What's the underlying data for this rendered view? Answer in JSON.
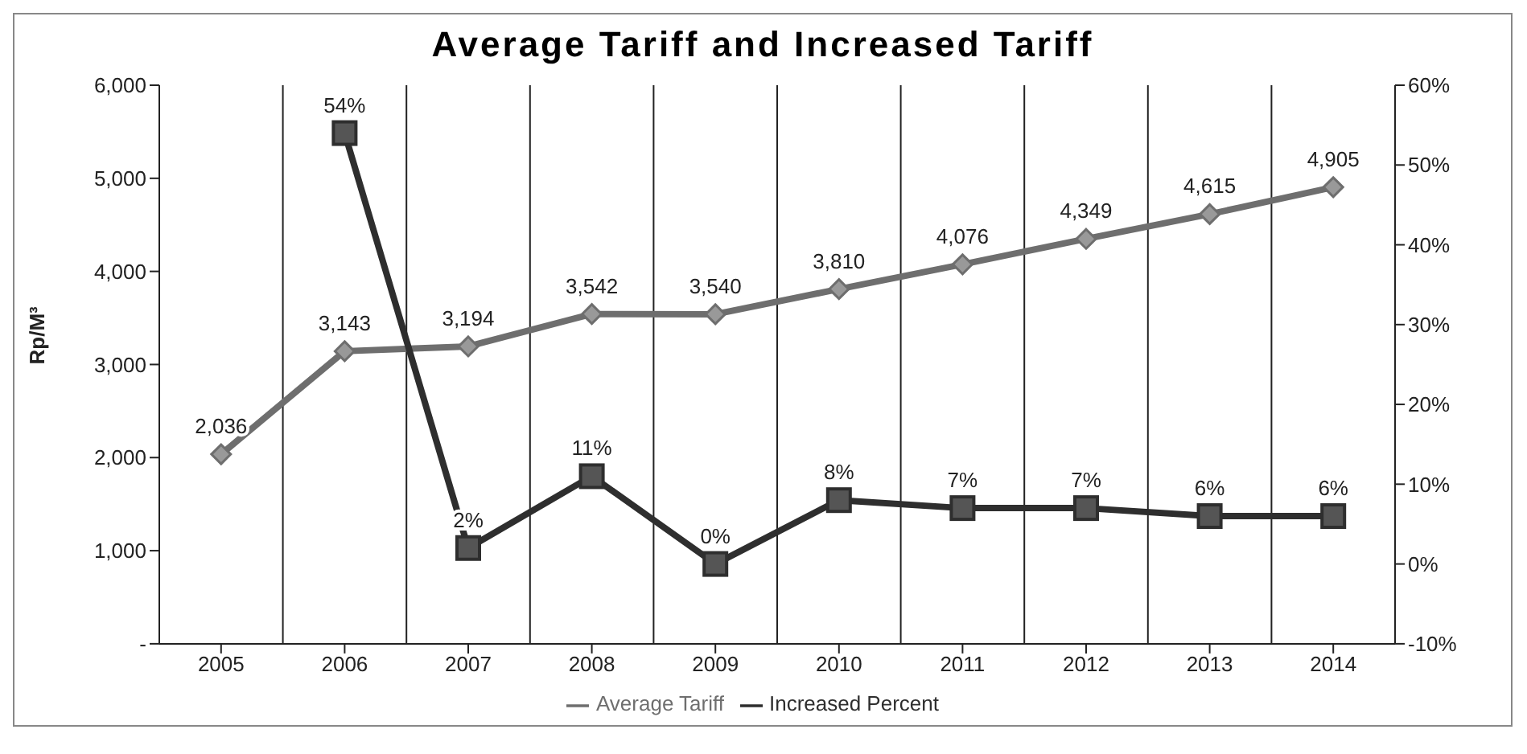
{
  "chart_data": {
    "type": "line",
    "title": "Average Tariff and Increased Tariff",
    "ylabel": "Rp/M³",
    "categories": [
      "2005",
      "2006",
      "2007",
      "2008",
      "2009",
      "2010",
      "2011",
      "2012",
      "2013",
      "2014"
    ],
    "series": [
      {
        "name": "Average Tariff",
        "color": "#6e6e6e",
        "marker": "diamond",
        "values": [
          2036,
          3143,
          3194,
          3542,
          3540,
          3810,
          4076,
          4349,
          4615,
          4905
        ],
        "value_labels": [
          "2,036",
          "3,143",
          "3,194",
          "3,542",
          "3,540",
          "3,810",
          "4,076",
          "4,349",
          "4,615",
          "4,905"
        ]
      },
      {
        "name": "Increased Percent",
        "color": "#2e2e2e",
        "marker": "square",
        "axis": "y2",
        "values": [
          null,
          54,
          2,
          11,
          0,
          8,
          7,
          7,
          6,
          6
        ],
        "value_labels": [
          null,
          "54%",
          "2%",
          "11%",
          "0%",
          "8%",
          "7%",
          "7%",
          "6%",
          "6%"
        ]
      }
    ],
    "ylim": [
      0,
      6000
    ],
    "yticks": [
      {
        "value": 0,
        "label": "-"
      },
      {
        "value": 1000,
        "label": "1,000"
      },
      {
        "value": 2000,
        "label": "2,000"
      },
      {
        "value": 3000,
        "label": "3,000"
      },
      {
        "value": 4000,
        "label": "4,000"
      },
      {
        "value": 5000,
        "label": "5,000"
      },
      {
        "value": 6000,
        "label": "6,000"
      }
    ],
    "y2lim": [
      -10,
      60
    ],
    "y2ticks": [
      {
        "value": -10,
        "label": "-10%"
      },
      {
        "value": 0,
        "label": "0%"
      },
      {
        "value": 10,
        "label": "10%"
      },
      {
        "value": 20,
        "label": "20%"
      },
      {
        "value": 30,
        "label": "30%"
      },
      {
        "value": 40,
        "label": "40%"
      },
      {
        "value": 50,
        "label": "50%"
      },
      {
        "value": 60,
        "label": "60%"
      }
    ],
    "grid": "x",
    "legend": "bottom"
  }
}
